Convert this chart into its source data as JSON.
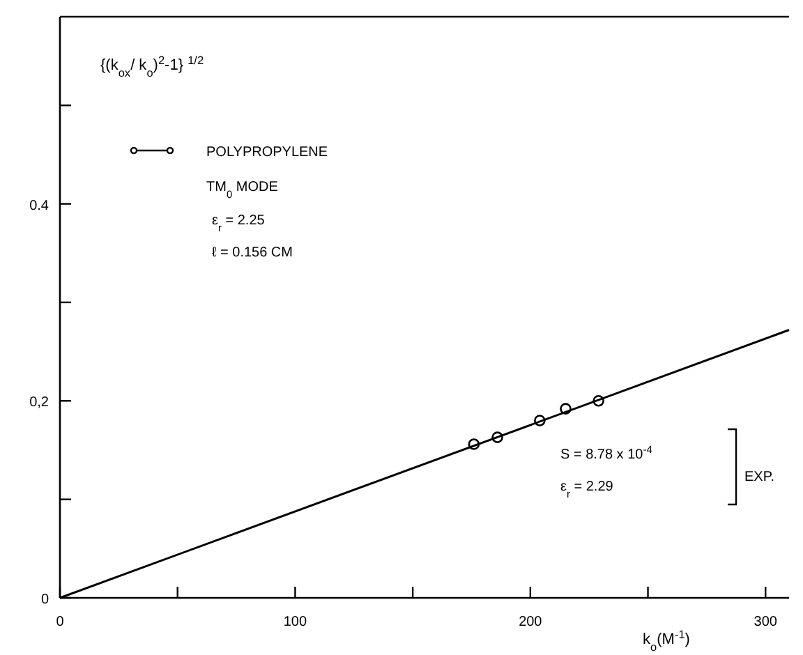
{
  "chart_data": {
    "type": "scatter",
    "ylabel": "{(k$_{ox}$/ k$_{o}$)$^{2}$-1} $^{1/2}$",
    "xlabel": "k$_{o}$(M$^{-1}$)",
    "xlim": [
      0,
      310
    ],
    "ylim": [
      0,
      0.59
    ],
    "xticks": [
      0,
      {
        "value": 50,
        "label": null
      },
      100,
      {
        "value": 150,
        "label": null
      },
      200,
      {
        "value": 250,
        "label": null
      },
      300
    ],
    "yticks": [
      0,
      {
        "value": 0.1,
        "label": null
      },
      {
        "value": 0.2,
        "label": "0,2"
      },
      {
        "value": 0.3,
        "label": null
      },
      {
        "value": 0.4,
        "label": "0.4"
      },
      {
        "value": 0.5,
        "label": null
      }
    ],
    "series": [
      {
        "name": "POLYPROPYLENE",
        "color": "#000000",
        "x": [
          176,
          186,
          204,
          215,
          229
        ],
        "values": [
          0.156,
          0.163,
          0.18,
          0.192,
          0.2
        ]
      },
      {
        "type": "line",
        "color": "#000000",
        "marker": "none",
        "line_style": "solid",
        "x": [
          0,
          310
        ],
        "values": [
          0,
          0.272
        ]
      }
    ],
    "legend": "top left",
    "grid": false,
    "marker": "circle",
    "annotations": [
      "TM$_{0}$ MODE",
      "ε$_{r}$ = 2.25",
      "ℓ = 0.156 CM",
      "S  = 8.78 x 10$^{-4}$",
      "ε$_{r}$ = 2.29",
      "EXP."
    ]
  }
}
